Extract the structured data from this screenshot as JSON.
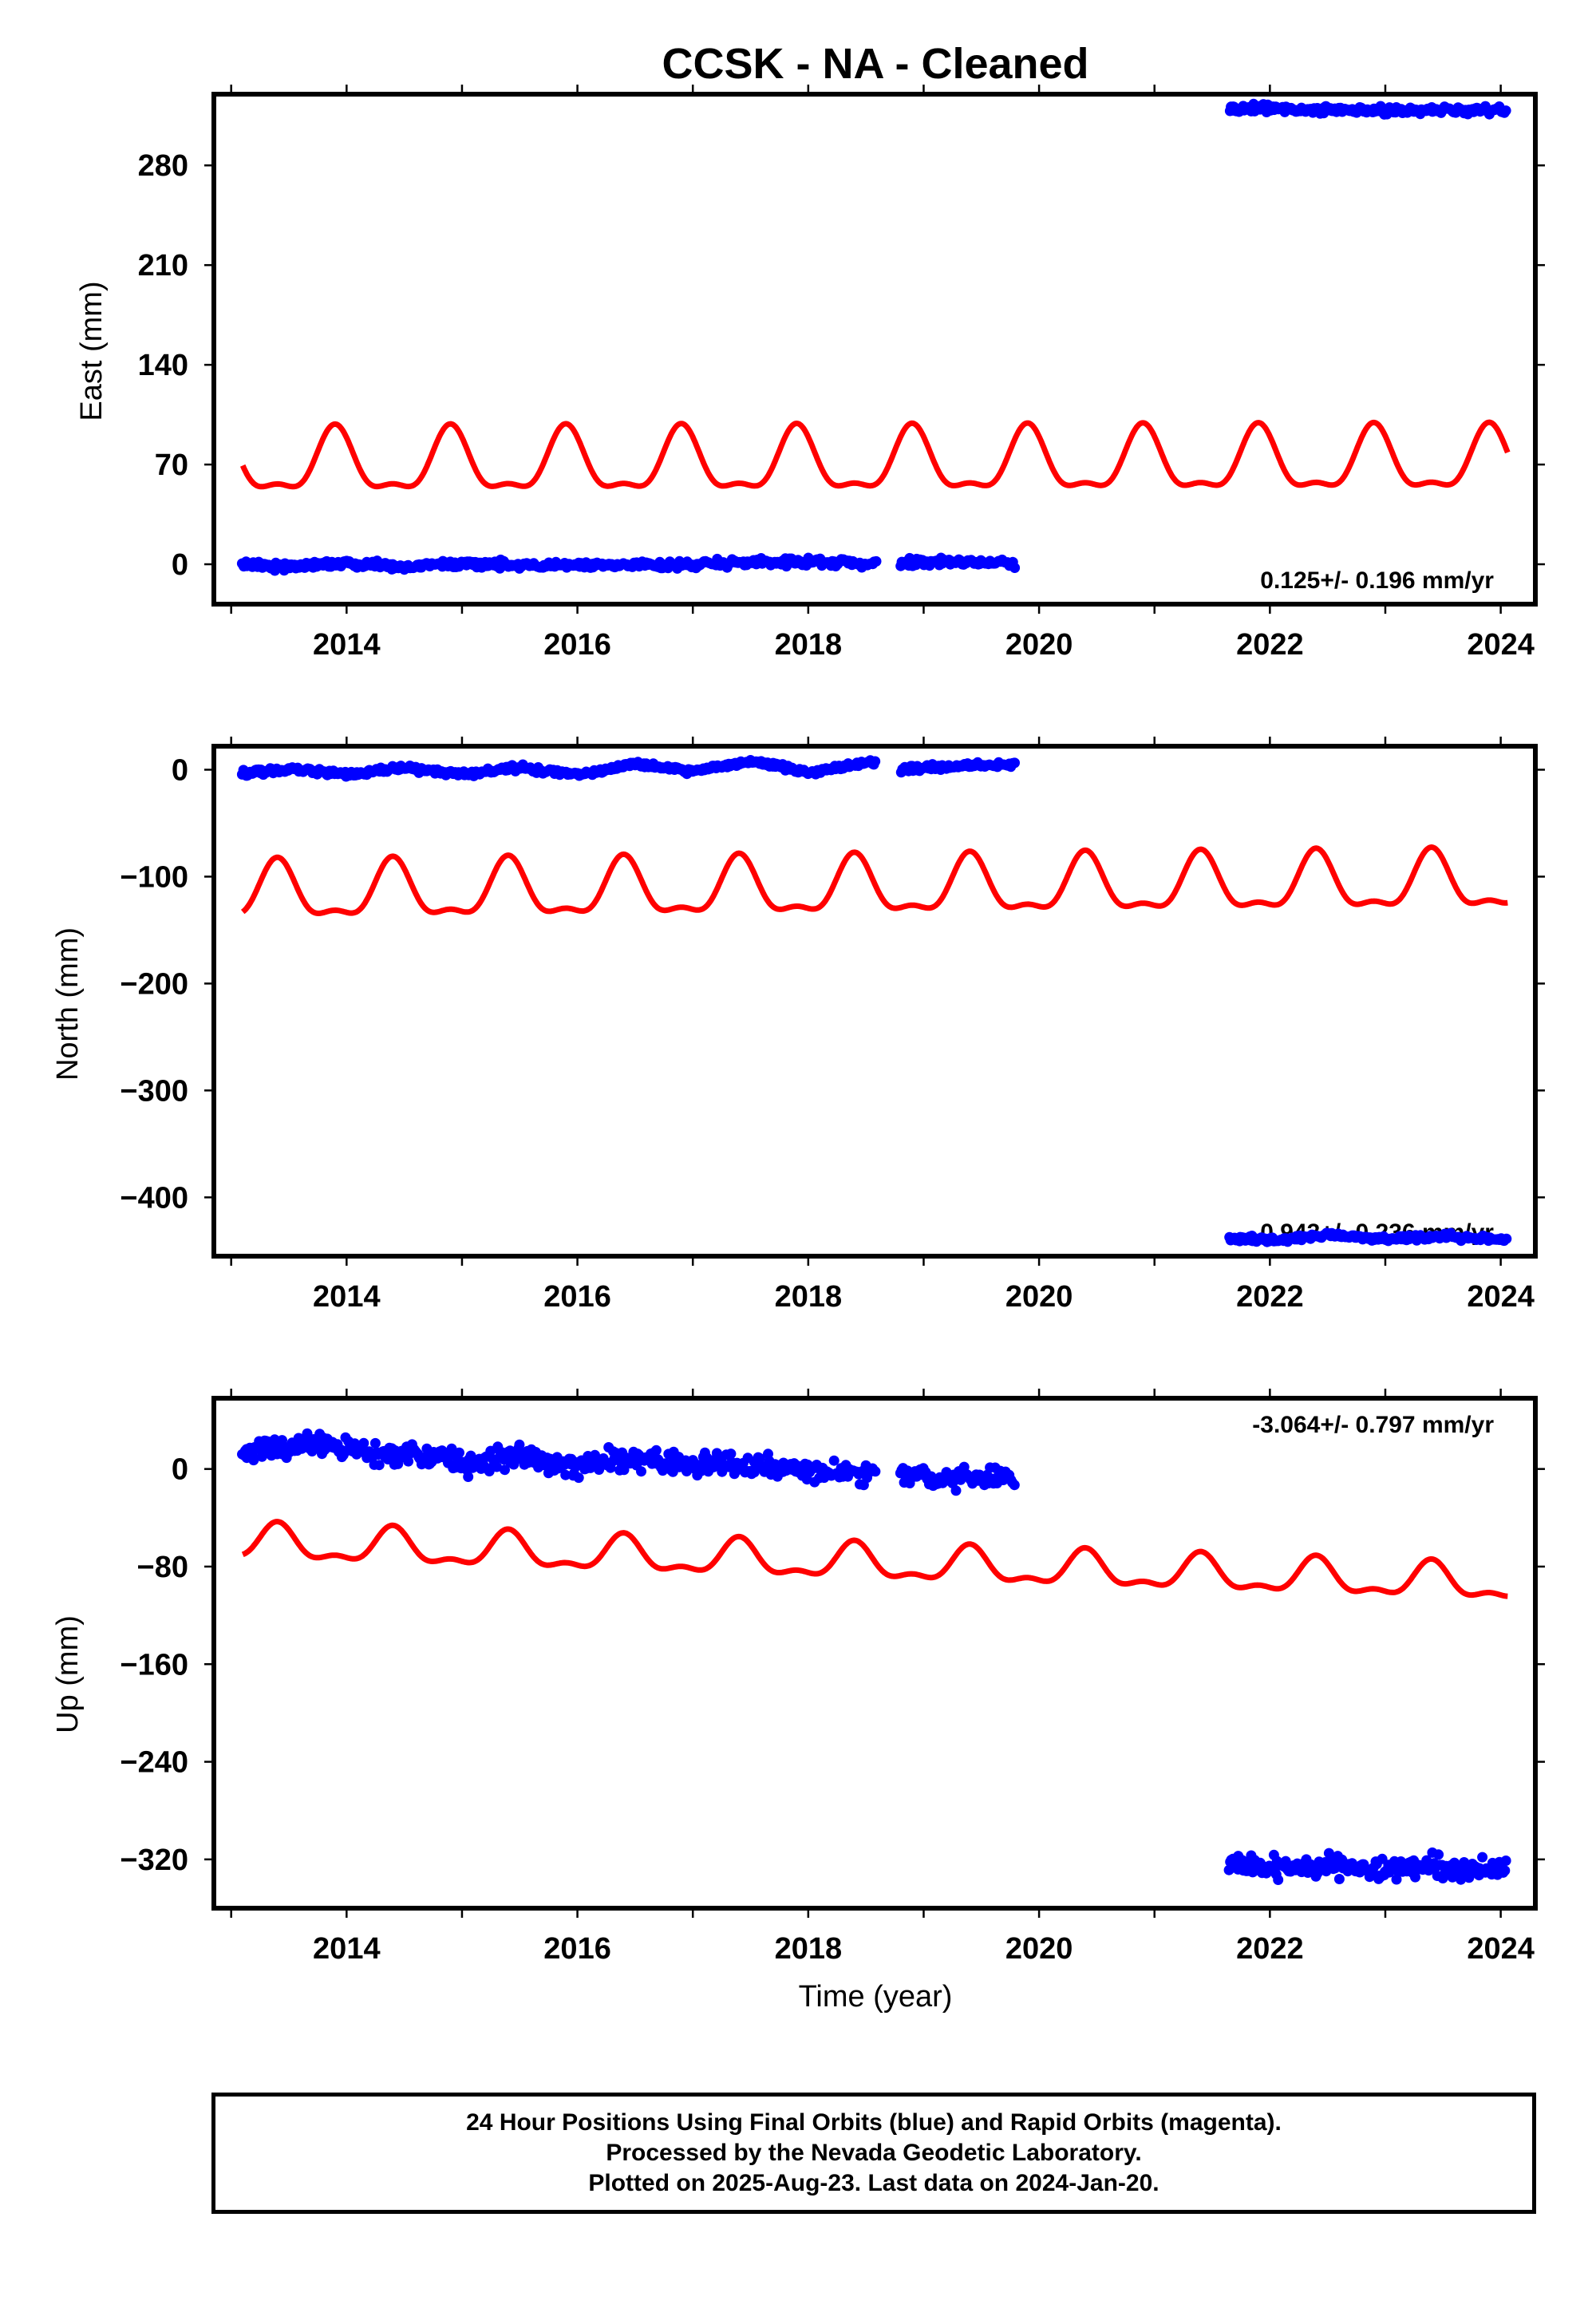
{
  "title": "CCSK  - NA - Cleaned",
  "xlabel": "Time (year)",
  "colors": {
    "data": "#0000ff",
    "model": "#ff0000",
    "frame": "#000000"
  },
  "footer": {
    "line1": "24 Hour Positions Using Final Orbits (blue) and Rapid Orbits (magenta).",
    "line2": "Processed by the Nevada Geodetic Laboratory.",
    "line3": "Plotted on 2025-Aug-23. Last data on 2024-Jan-20."
  },
  "chart_data": [
    {
      "type": "scatter",
      "component": "east",
      "ylabel": "East (mm)",
      "rate_text": "0.125+/- 0.196 mm/yr",
      "rate_position": "bottom-right",
      "xlim": [
        2012.85,
        2024.3
      ],
      "ylim": [
        -28,
        330
      ],
      "xticks": [
        2014,
        2016,
        2018,
        2020,
        2022,
        2024
      ],
      "yticks": [
        0,
        70,
        140,
        210,
        280
      ],
      "grid": false,
      "data_series": {
        "name": "daily positions",
        "segments": [
          {
            "x": [
              2013.1,
              2013.5,
              2014.0,
              2014.5,
              2015.0,
              2015.5,
              2016.0,
              2016.5,
              2017.0,
              2017.5,
              2018.0,
              2018.6
            ],
            "y": [
              0,
              -2,
              1,
              -2,
              1,
              -1,
              0,
              -1,
              0,
              1,
              2,
              0
            ]
          },
          {
            "x": [
              2018.8,
              2019.2,
              2019.8
            ],
            "y": [
              1,
              2,
              0
            ]
          },
          {
            "x": [
              2021.65,
              2022.0,
              2022.5,
              2023.0,
              2023.5,
              2024.06
            ],
            "y": [
              320,
              320,
              319,
              318,
              319,
              318
            ]
          }
        ]
      },
      "model_series": {
        "name": "model fit",
        "x": [
          2013.1,
          2024.06
        ],
        "baseline": 70,
        "annual_amplitude": 21,
        "semiannual_amplitude": 8,
        "trend_per_year": 0.125
      }
    },
    {
      "type": "scatter",
      "component": "north",
      "ylabel": "North (mm)",
      "rate_text": "0.943+/- 0.236 mm/yr",
      "rate_position": "bottom-right",
      "xlim": [
        2012.85,
        2024.3
      ],
      "ylim": [
        -455,
        22
      ],
      "xticks": [
        2014,
        2016,
        2018,
        2020,
        2022,
        2024
      ],
      "yticks": [
        0,
        -100,
        -200,
        -300,
        -400
      ],
      "grid": false,
      "data_series": {
        "name": "daily positions",
        "segments": [
          {
            "x": [
              2013.1,
              2013.5,
              2014.0,
              2014.5,
              2015.0,
              2015.5,
              2016.0,
              2016.5,
              2017.0,
              2017.5,
              2018.0,
              2018.6
            ],
            "y": [
              -3,
              0,
              -4,
              2,
              -4,
              2,
              -5,
              5,
              -2,
              8,
              -2,
              8
            ]
          },
          {
            "x": [
              2018.8,
              2019.2,
              2019.8
            ],
            "y": [
              0,
              3,
              5
            ]
          },
          {
            "x": [
              2021.65,
              2022.0,
              2022.5,
              2023.0,
              2023.5,
              2024.06
            ],
            "y": [
              -438,
              -440,
              -435,
              -439,
              -436,
              -440
            ]
          }
        ]
      },
      "model_series": {
        "name": "model fit",
        "x": [
          2013.1,
          2024.06
        ],
        "baseline": -112,
        "annual_amplitude": 25,
        "semiannual_amplitude": 10,
        "trend_per_year": 0.943
      }
    },
    {
      "type": "scatter",
      "component": "up",
      "ylabel": "Up (mm)",
      "rate_text": "-3.064+/- 0.797 mm/yr",
      "rate_position": "top-right",
      "xlim": [
        2012.85,
        2024.3
      ],
      "ylim": [
        -360,
        58
      ],
      "xticks": [
        2014,
        2016,
        2018,
        2020,
        2022,
        2024
      ],
      "yticks": [
        0,
        -80,
        -160,
        -240,
        -320
      ],
      "grid": false,
      "data_series": {
        "name": "daily positions",
        "segments": [
          {
            "x": [
              2013.1,
              2013.5,
              2014.0,
              2014.5,
              2015.0,
              2015.5,
              2016.0,
              2016.5,
              2017.0,
              2017.5,
              2018.0,
              2018.6
            ],
            "y": [
              15,
              20,
              18,
              12,
              5,
              10,
              2,
              10,
              4,
              3,
              -2,
              -5
            ]
          },
          {
            "x": [
              2018.8,
              2019.2,
              2019.8
            ],
            "y": [
              -3,
              -8,
              -5
            ]
          },
          {
            "x": [
              2021.65,
              2022.0,
              2022.5,
              2023.0,
              2023.5,
              2024.06
            ],
            "y": [
              -322,
              -328,
              -325,
              -330,
              -327,
              -328
            ]
          }
        ]
      },
      "model_series": {
        "name": "model fit",
        "x": [
          2013.1,
          2024.06
        ],
        "baseline": -78,
        "annual_amplitude": 13,
        "semiannual_amplitude": 6,
        "trend_per_year": -3.064
      }
    }
  ]
}
